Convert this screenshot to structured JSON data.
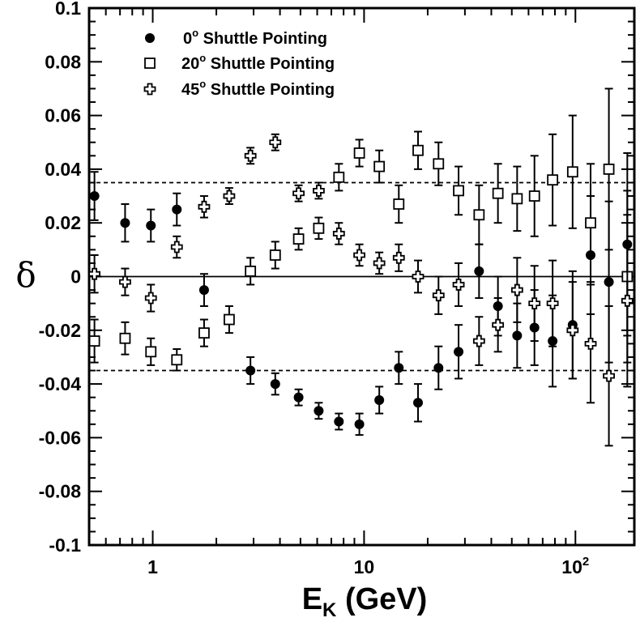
{
  "chart_data": {
    "type": "scatter",
    "xscale": "log",
    "xlim": [
      0.5,
      190
    ],
    "ylim": [
      -0.1,
      0.1
    ],
    "ylabel": "δ",
    "xlabel_main": "E",
    "xlabel_sub": "K",
    "xlabel_unit": " (GeV)",
    "x_ticks": [
      {
        "value": 1,
        "label": "1"
      },
      {
        "value": 10,
        "label": "10"
      },
      {
        "value": 100,
        "label": "10",
        "sup": "2"
      }
    ],
    "y_ticks": [
      {
        "value": -0.1,
        "label": "-0.1"
      },
      {
        "value": -0.08,
        "label": "-0.08"
      },
      {
        "value": -0.06,
        "label": "-0.06"
      },
      {
        "value": -0.04,
        "label": "-0.04"
      },
      {
        "value": -0.02,
        "label": "-0.02"
      },
      {
        "value": 0,
        "label": "0"
      },
      {
        "value": 0.02,
        "label": "0.02"
      },
      {
        "value": 0.04,
        "label": "0.04"
      },
      {
        "value": 0.06,
        "label": "0.06"
      },
      {
        "value": 0.08,
        "label": "0.08"
      },
      {
        "value": 0.1,
        "label": "0.1"
      }
    ],
    "reference_lines": [
      {
        "y": 0,
        "style": "solid"
      },
      {
        "y": 0.035,
        "style": "dashed"
      },
      {
        "y": -0.035,
        "style": "dashed"
      }
    ],
    "legend": {
      "placement": "top-left",
      "entries": [
        {
          "marker": "filled-circle",
          "pre": "0",
          "sup": "o",
          "post": " Shuttle Pointing"
        },
        {
          "marker": "open-square",
          "pre": "20",
          "sup": "o",
          "post": " Shuttle Pointing"
        },
        {
          "marker": "open-cross",
          "pre": "45",
          "sup": "o",
          "post": " Shuttle Pointing"
        }
      ]
    },
    "series": [
      {
        "marker": "filled-circle",
        "points": [
          {
            "x": 0.53,
            "y": 0.03,
            "err": 0.009
          },
          {
            "x": 0.74,
            "y": 0.02,
            "err": 0.007
          },
          {
            "x": 0.98,
            "y": 0.019,
            "err": 0.006
          },
          {
            "x": 1.3,
            "y": 0.025,
            "err": 0.006
          },
          {
            "x": 1.75,
            "y": -0.005,
            "err": 0.006
          },
          {
            "x": 2.9,
            "y": -0.035,
            "err": 0.005
          },
          {
            "x": 3.8,
            "y": -0.04,
            "err": 0.004
          },
          {
            "x": 4.9,
            "y": -0.045,
            "err": 0.003
          },
          {
            "x": 6.1,
            "y": -0.05,
            "err": 0.003
          },
          {
            "x": 7.6,
            "y": -0.054,
            "err": 0.003
          },
          {
            "x": 9.5,
            "y": -0.055,
            "err": 0.004
          },
          {
            "x": 11.8,
            "y": -0.046,
            "err": 0.005
          },
          {
            "x": 14.6,
            "y": -0.034,
            "err": 0.006
          },
          {
            "x": 18,
            "y": -0.047,
            "err": 0.007
          },
          {
            "x": 22.5,
            "y": -0.034,
            "err": 0.008
          },
          {
            "x": 28,
            "y": -0.028,
            "err": 0.01
          },
          {
            "x": 35,
            "y": 0.002,
            "err": 0.01
          },
          {
            "x": 43,
            "y": -0.011,
            "err": 0.011
          },
          {
            "x": 53,
            "y": -0.022,
            "err": 0.012
          },
          {
            "x": 64,
            "y": -0.019,
            "err": 0.014
          },
          {
            "x": 78,
            "y": -0.024,
            "err": 0.017
          },
          {
            "x": 97,
            "y": -0.018,
            "err": 0.02
          },
          {
            "x": 118,
            "y": 0.008,
            "err": 0.022
          },
          {
            "x": 144,
            "y": -0.002,
            "err": 0.03
          },
          {
            "x": 176,
            "y": 0.012,
            "err": 0.034
          }
        ]
      },
      {
        "marker": "open-square",
        "points": [
          {
            "x": 0.53,
            "y": -0.024,
            "err": 0.008
          },
          {
            "x": 0.74,
            "y": -0.023,
            "err": 0.006
          },
          {
            "x": 0.98,
            "y": -0.028,
            "err": 0.005
          },
          {
            "x": 1.3,
            "y": -0.031,
            "err": 0.004
          },
          {
            "x": 1.75,
            "y": -0.021,
            "err": 0.005
          },
          {
            "x": 2.3,
            "y": -0.016,
            "err": 0.005
          },
          {
            "x": 2.9,
            "y": 0.002,
            "err": 0.005
          },
          {
            "x": 3.8,
            "y": 0.008,
            "err": 0.005
          },
          {
            "x": 4.9,
            "y": 0.014,
            "err": 0.004
          },
          {
            "x": 6.1,
            "y": 0.018,
            "err": 0.004
          },
          {
            "x": 7.6,
            "y": 0.037,
            "err": 0.005
          },
          {
            "x": 9.5,
            "y": 0.046,
            "err": 0.005
          },
          {
            "x": 11.8,
            "y": 0.041,
            "err": 0.006
          },
          {
            "x": 14.6,
            "y": 0.027,
            "err": 0.007
          },
          {
            "x": 18,
            "y": 0.047,
            "err": 0.007
          },
          {
            "x": 22.5,
            "y": 0.042,
            "err": 0.008
          },
          {
            "x": 28,
            "y": 0.032,
            "err": 0.009
          },
          {
            "x": 35,
            "y": 0.023,
            "err": 0.011
          },
          {
            "x": 43,
            "y": 0.031,
            "err": 0.011
          },
          {
            "x": 53,
            "y": 0.029,
            "err": 0.012
          },
          {
            "x": 64,
            "y": 0.03,
            "err": 0.015
          },
          {
            "x": 78,
            "y": 0.036,
            "err": 0.017
          },
          {
            "x": 97,
            "y": 0.039,
            "err": 0.021
          },
          {
            "x": 118,
            "y": 0.02,
            "err": 0.022
          },
          {
            "x": 144,
            "y": 0.04,
            "err": 0.03
          },
          {
            "x": 176,
            "y": 0.0,
            "err": 0.032
          }
        ]
      },
      {
        "marker": "open-cross",
        "points": [
          {
            "x": 0.53,
            "y": 0.001,
            "err": 0.007
          },
          {
            "x": 0.74,
            "y": -0.002,
            "err": 0.005
          },
          {
            "x": 0.98,
            "y": -0.008,
            "err": 0.005
          },
          {
            "x": 1.3,
            "y": 0.011,
            "err": 0.004
          },
          {
            "x": 1.75,
            "y": 0.026,
            "err": 0.004
          },
          {
            "x": 2.3,
            "y": 0.03,
            "err": 0.003
          },
          {
            "x": 2.9,
            "y": 0.045,
            "err": 0.003
          },
          {
            "x": 3.8,
            "y": 0.05,
            "err": 0.003
          },
          {
            "x": 4.9,
            "y": 0.031,
            "err": 0.003
          },
          {
            "x": 6.1,
            "y": 0.032,
            "err": 0.003
          },
          {
            "x": 7.6,
            "y": 0.016,
            "err": 0.004
          },
          {
            "x": 9.5,
            "y": 0.008,
            "err": 0.004
          },
          {
            "x": 11.8,
            "y": 0.005,
            "err": 0.004
          },
          {
            "x": 14.6,
            "y": 0.007,
            "err": 0.005
          },
          {
            "x": 18,
            "y": 0.0,
            "err": 0.006
          },
          {
            "x": 22.5,
            "y": -0.007,
            "err": 0.007
          },
          {
            "x": 28,
            "y": -0.003,
            "err": 0.008
          },
          {
            "x": 35,
            "y": -0.024,
            "err": 0.009
          },
          {
            "x": 43,
            "y": -0.018,
            "err": 0.01
          },
          {
            "x": 53,
            "y": -0.005,
            "err": 0.012
          },
          {
            "x": 64,
            "y": -0.01,
            "err": 0.014
          },
          {
            "x": 78,
            "y": -0.01,
            "err": 0.016
          },
          {
            "x": 97,
            "y": -0.02,
            "err": 0.018
          },
          {
            "x": 118,
            "y": -0.025,
            "err": 0.022
          },
          {
            "x": 144,
            "y": -0.037,
            "err": 0.026
          },
          {
            "x": 176,
            "y": -0.009,
            "err": 0.032
          }
        ]
      }
    ]
  }
}
